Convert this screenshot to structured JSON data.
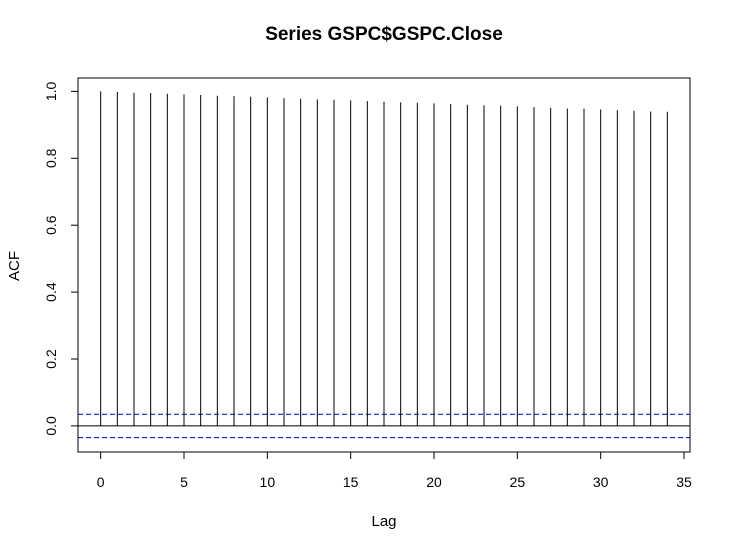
{
  "chart_data": {
    "type": "bar",
    "title": "Series  GSPC$GSPC.Close",
    "xlabel": "Lag",
    "ylabel": "ACF",
    "xlim": [
      -1.36,
      35.36
    ],
    "ylim": [
      -0.078,
      1.04
    ],
    "x_ticks": [
      0,
      5,
      10,
      15,
      20,
      25,
      30,
      35
    ],
    "x_tick_labels": [
      "0",
      "5",
      "10",
      "15",
      "20",
      "25",
      "30",
      "35"
    ],
    "y_ticks": [
      0.0,
      0.2,
      0.4,
      0.6,
      0.8,
      1.0
    ],
    "y_tick_labels": [
      "0.0",
      "0.2",
      "0.4",
      "0.6",
      "0.8",
      "1.0"
    ],
    "lags": [
      0,
      1,
      2,
      3,
      4,
      5,
      6,
      7,
      8,
      9,
      10,
      11,
      12,
      13,
      14,
      15,
      16,
      17,
      18,
      19,
      20,
      21,
      22,
      23,
      24,
      25,
      26,
      27,
      28,
      29,
      30,
      31,
      32,
      33,
      34
    ],
    "values": [
      1.0,
      0.998,
      0.996,
      0.995,
      0.993,
      0.991,
      0.989,
      0.987,
      0.986,
      0.984,
      0.982,
      0.98,
      0.978,
      0.976,
      0.975,
      0.973,
      0.971,
      0.969,
      0.967,
      0.966,
      0.964,
      0.962,
      0.96,
      0.958,
      0.957,
      0.955,
      0.953,
      0.951,
      0.949,
      0.948,
      0.946,
      0.944,
      0.942,
      0.94,
      0.939
    ],
    "confidence_bound": 0.035,
    "grid": false,
    "colors": {
      "bars": "#000000",
      "zero_line": "#000000",
      "confidence_lines": "#0000cd",
      "frame": "#000000"
    }
  }
}
